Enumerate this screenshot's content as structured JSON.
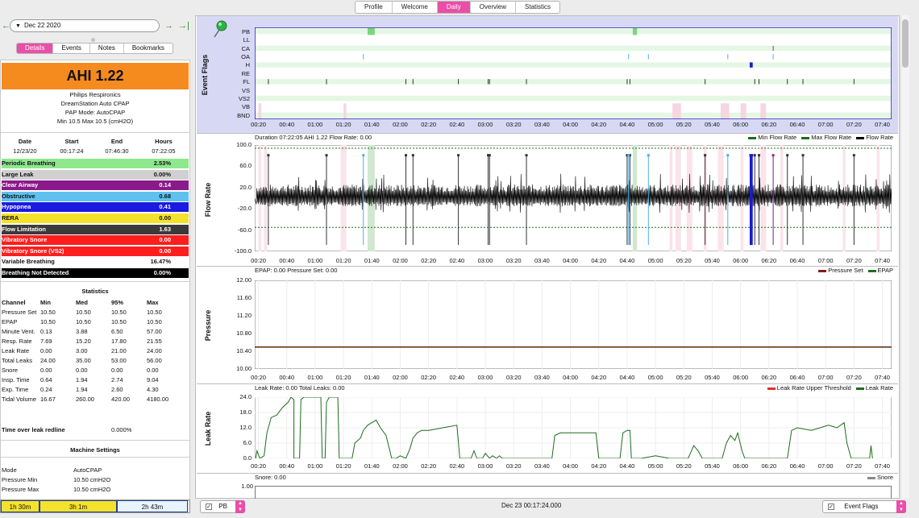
{
  "top_tabs": [
    {
      "label": "Profile"
    },
    {
      "label": "Welcome"
    },
    {
      "label": "Daily",
      "active": true
    },
    {
      "label": "Overview"
    },
    {
      "label": "Statistics"
    }
  ],
  "date_nav": {
    "date": "Dec 22 2020"
  },
  "sub_tabs": [
    {
      "label": "Details",
      "active": true
    },
    {
      "label": "Events"
    },
    {
      "label": "Notes"
    },
    {
      "label": "Bookmarks"
    }
  ],
  "ahi": {
    "label": "AHI 1.22",
    "color": "#f58b1f"
  },
  "device": {
    "manufacturer": "Philips Respironics",
    "model": "DreamStation Auto CPAP",
    "mode": "PAP Mode: AutoCPAP",
    "pressure": "Min 10.5 Max 10.5 (cmH2O)"
  },
  "session": {
    "headers": [
      "Date",
      "Start",
      "End",
      "Hours"
    ],
    "values": [
      "12/23/20",
      "00:17:24",
      "07:46:30",
      "07:22:05"
    ]
  },
  "indices": [
    {
      "name": "Periodic Breathing",
      "value": "2.53%",
      "bg": "#8ee88e",
      "fg": "#111"
    },
    {
      "name": "Large Leak",
      "value": "0.00%",
      "bg": "#d0d0d0",
      "fg": "#111"
    },
    {
      "name": "Clear Airway",
      "value": "0.14",
      "bg": "#8a1a8a",
      "fg": "#fff"
    },
    {
      "name": "Obstructive",
      "value": "0.68",
      "bg": "#5fc1ef",
      "fg": "#111"
    },
    {
      "name": "Hypopnea",
      "value": "0.41",
      "bg": "#1a1ae0",
      "fg": "#fff"
    },
    {
      "name": "RERA",
      "value": "0.00",
      "bg": "#f5e22c",
      "fg": "#111"
    },
    {
      "name": "Flow Limitation",
      "value": "1.63",
      "bg": "#3a3a3a",
      "fg": "#fff"
    },
    {
      "name": "Vibratory Snore",
      "value": "0.00",
      "bg": "#ff1e1e",
      "fg": "#fff"
    },
    {
      "name": "Vibratory Snore (VS2)",
      "value": "0.00",
      "bg": "#ff1e1e",
      "fg": "#fff"
    },
    {
      "name": "Variable Breathing",
      "value": "16.47%",
      "bg": "#ffffff",
      "fg": "#111"
    },
    {
      "name": "Breathing Not Detected",
      "value": "0.00%",
      "bg": "#000000",
      "fg": "#fff"
    }
  ],
  "statistics": {
    "title": "Statistics",
    "headers": [
      "Channel",
      "Min",
      "Med",
      "95%",
      "Max"
    ],
    "rows": [
      [
        "Pressure Set",
        "10.50",
        "10.50",
        "10.50",
        "10.50"
      ],
      [
        "EPAP",
        "10.50",
        "10.50",
        "10.50",
        "10.50"
      ],
      [
        "Minute Vent.",
        "0.13",
        "3.88",
        "6.50",
        "57.00"
      ],
      [
        "Resp. Rate",
        "7.69",
        "15.20",
        "17.80",
        "21.55"
      ],
      [
        "Leak Rate",
        "0.00",
        "3.00",
        "21.00",
        "24.00"
      ],
      [
        "Total Leaks",
        "24.00",
        "35.00",
        "53.00",
        "56.00"
      ],
      [
        "Snore",
        "0.00",
        "0.00",
        "0.00",
        "0.00"
      ],
      [
        "Insp. Time",
        "0.64",
        "1.94",
        "2.74",
        "9.04"
      ],
      [
        "Exp. Time",
        "0.24",
        "1.94",
        "2.60",
        "4.30"
      ],
      [
        "Tidal Volume",
        "16.67",
        "260.00",
        "420.00",
        "4180.00"
      ]
    ]
  },
  "time_over_leak": {
    "label": "Time over leak redline",
    "value": "0.000%"
  },
  "machine_settings": {
    "title": "Machine Settings",
    "rows": [
      [
        "Mode",
        "AutoCPAP"
      ],
      [
        "Pressure Min",
        "10.50 cmH2O"
      ],
      [
        "Pressure Max",
        "10.50 cmH2O"
      ]
    ]
  },
  "summary_bar": [
    {
      "label": "1h 30m",
      "bg": "#f5e22c"
    },
    {
      "label": "3h 1m",
      "bg": "#f5e22c"
    },
    {
      "label": "2h 43m",
      "bg": "#e8f4ff"
    }
  ],
  "x_ticks": [
    "00:20",
    "00:40",
    "01:00",
    "01:20",
    "01:40",
    "02:00",
    "02:20",
    "02:40",
    "03:00",
    "03:20",
    "03:40",
    "04:00",
    "04:20",
    "04:40",
    "05:00",
    "05:20",
    "05:40",
    "06:00",
    "06:20",
    "06:40",
    "07:00",
    "07:20",
    "07:40"
  ],
  "event_flags": {
    "ylabel": "Event Flags",
    "channels": [
      "PB",
      "LL",
      "CA",
      "OA",
      "H",
      "RE",
      "FL",
      "VS",
      "VS2",
      "VB",
      "BND"
    ],
    "events": {
      "PB": [
        [
          "01:37",
          "01:42"
        ],
        [
          "04:44",
          "04:47"
        ]
      ],
      "CA": [
        "06:23"
      ],
      "OA": [
        "01:34",
        "04:41",
        "04:55",
        "05:51",
        "06:23"
      ],
      "H": [
        "06:07",
        "06:08"
      ],
      "FL": [
        "00:27",
        "01:08",
        "02:04",
        "02:09",
        "02:41",
        "03:02",
        "03:03",
        "03:29",
        "04:40",
        "04:42",
        "05:35",
        "06:10",
        "06:13",
        "06:33",
        "06:44",
        "07:20"
      ]
    }
  },
  "flow_rate": {
    "ylabel": "Flow Rate",
    "title": "Duration 07:22:05 AHI 1.22 Flow Rate: 0.00",
    "legend": [
      {
        "name": "Min Flow Rate",
        "color": "#1e6b1e"
      },
      {
        "name": "Max Flow Rate",
        "color": "#1e6b1e"
      },
      {
        "name": "Flow Rate",
        "color": "#000000"
      }
    ],
    "y_ticks": [
      "100.0",
      "60.0",
      "20.0",
      "-20.0",
      "-60.0",
      "-100.0"
    ],
    "y_range": [
      -100,
      100
    ],
    "ref_lines": [
      94,
      -55
    ]
  },
  "pressure": {
    "ylabel": "Pressure",
    "title": "EPAP: 0.00 Pressure Set: 0.00",
    "legend": [
      {
        "name": "Pressure Set",
        "color": "#8b1a1a"
      },
      {
        "name": "EPAP",
        "color": "#1e6b1e"
      }
    ],
    "y_ticks": [
      "12.00",
      "11.60",
      "11.20",
      "10.80",
      "10.40",
      "10.00"
    ],
    "y_range": [
      10.0,
      12.0
    ],
    "value": 10.5
  },
  "leak_rate": {
    "ylabel": "Leak Rate",
    "title": "Leak Rate: 0.00 Total Leaks: 0.00",
    "legend": [
      {
        "name": "Leak Rate Upper Threshold",
        "color": "#e03030"
      },
      {
        "name": "Leak Rate",
        "color": "#1e6b1e"
      }
    ],
    "y_ticks": [
      "24.0",
      "18.0",
      "12.0",
      "6.0",
      "0.0"
    ],
    "y_range": [
      0,
      24
    ]
  },
  "snore": {
    "title": "Snore: 0.00",
    "legend": [
      {
        "name": "Snore",
        "color": "#888888"
      }
    ],
    "y_tick": "1.00"
  },
  "bottom_bar": {
    "left_select": "PB",
    "center": "Dec 23 00:17:24.000",
    "right_select": "Event Flags"
  }
}
